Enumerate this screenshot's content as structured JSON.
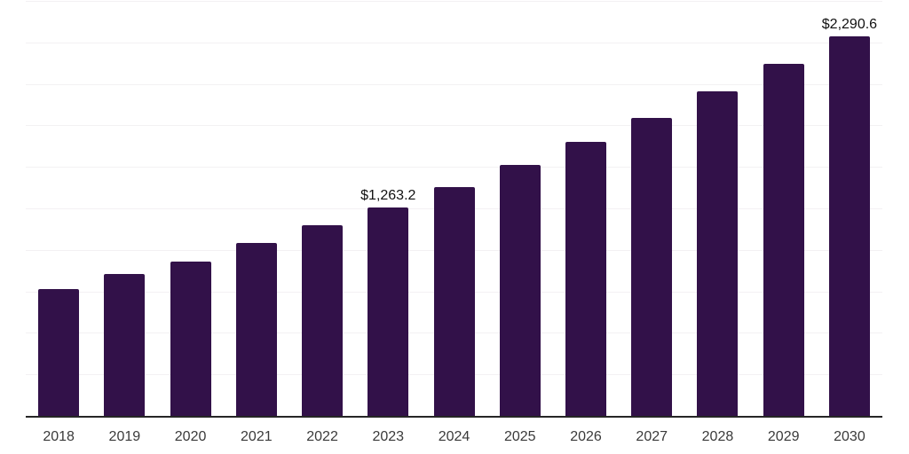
{
  "chart_data": {
    "type": "bar",
    "title": "",
    "xlabel": "",
    "ylabel": "",
    "categories": [
      "2018",
      "2019",
      "2020",
      "2021",
      "2022",
      "2023",
      "2024",
      "2025",
      "2026",
      "2027",
      "2028",
      "2029",
      "2030"
    ],
    "values": [
      770,
      860,
      935,
      1048,
      1152,
      1263.2,
      1383,
      1517,
      1654,
      1802,
      1962,
      2126,
      2290.6
    ],
    "data_labels": [
      "",
      "",
      "",
      "",
      "",
      "$1,263.2",
      "",
      "",
      "",
      "",
      "",
      "",
      "$2,290.6"
    ],
    "ylim": [
      0,
      2500
    ],
    "gridline_step": 250,
    "grid": "horizontal-light",
    "legend": "none",
    "bar_color": "#321149"
  },
  "colors": {
    "background": "#ffffff",
    "bar": "#321149",
    "gridline": "#f3f1f3",
    "axis_line": "#262626",
    "tick_text": "#3a3a3a",
    "data_label_text": "#111111"
  }
}
